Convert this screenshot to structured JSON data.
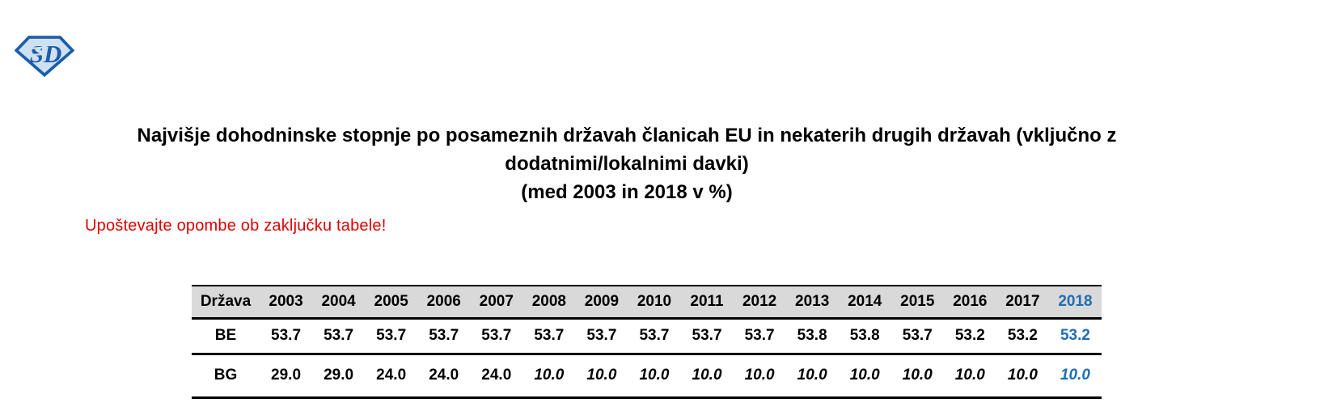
{
  "logo": {
    "letters": "SD",
    "outline_color": "#1a5da9",
    "fill_color": "#cfe0f1"
  },
  "title": {
    "line1": "Najvišje dohodninske stopnje po posameznih državah članicah EU in nekaterih drugih državah (vključno z",
    "line2": "dodatnimi/lokalnimi davki)",
    "line3": "(med 2003 in 2018 v %)"
  },
  "note": {
    "text": "Upoštevajte opombe ob zaključku tabele!",
    "color": "#e00000"
  },
  "table": {
    "colors": {
      "header_bg": "#d9d9d9",
      "border": "#000000",
      "highlight_blue": "#1e6db6",
      "text": "#000000"
    },
    "header": {
      "country_label": "Država",
      "years": [
        "2003",
        "2004",
        "2005",
        "2006",
        "2007",
        "2008",
        "2009",
        "2010",
        "2011",
        "2012",
        "2013",
        "2014",
        "2015",
        "2016",
        "2017",
        "2018"
      ],
      "highlight_year": "2018"
    },
    "rows": [
      {
        "code": "BE",
        "values": [
          "53.7",
          "53.7",
          "53.7",
          "53.7",
          "53.7",
          "53.7",
          "53.7",
          "53.7",
          "53.7",
          "53.7",
          "53.8",
          "53.8",
          "53.7",
          "53.2",
          "53.2",
          "53.2"
        ],
        "italic_indices": []
      },
      {
        "code": "BG",
        "values": [
          "29.0",
          "29.0",
          "24.0",
          "24.0",
          "24.0",
          "10.0",
          "10.0",
          "10.0",
          "10.0",
          "10.0",
          "10.0",
          "10.0",
          "10.0",
          "10.0",
          "10.0",
          "10.0"
        ],
        "italic_indices": [
          5,
          6,
          7,
          8,
          9,
          10,
          11,
          12,
          13,
          14,
          15
        ]
      }
    ]
  }
}
